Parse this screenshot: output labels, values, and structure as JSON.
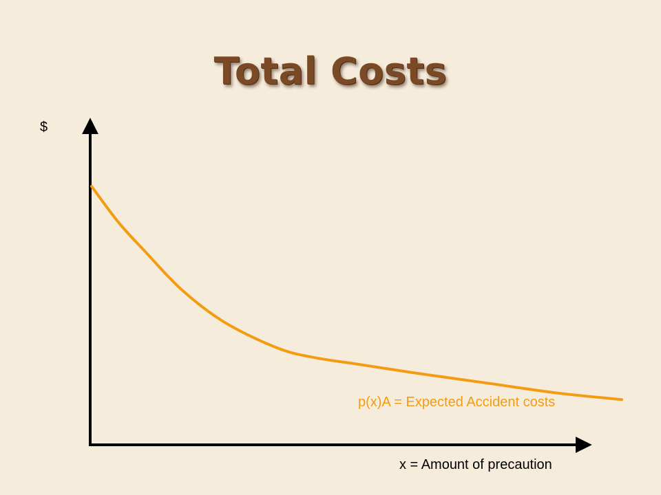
{
  "slide": {
    "title": "Total Costs"
  },
  "colors": {
    "background": "#f6ecdc",
    "title": "#7a4a26",
    "axes": "#000000",
    "accident_curve": "#f39c12"
  },
  "chart_data": {
    "type": "line",
    "title": "Total Costs",
    "ylabel": "$",
    "xlabel": "x = Amount of precaution",
    "grid": false,
    "axis_ticks": false,
    "xlim": [
      0,
      100
    ],
    "ylim": [
      0,
      100
    ],
    "series": [
      {
        "name": "p(x)A = Expected Accident costs",
        "color": "#f39c12",
        "x": [
          0,
          5,
          10,
          17,
          25,
          35,
          42,
          50,
          62,
          75,
          88,
          100
        ],
        "y": [
          80,
          69,
          60,
          48,
          38,
          30,
          27,
          25,
          22,
          19,
          16,
          14
        ]
      }
    ]
  }
}
